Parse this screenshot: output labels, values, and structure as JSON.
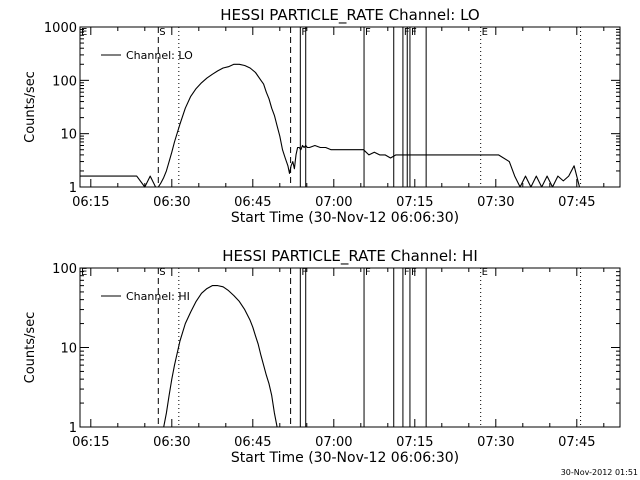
{
  "chart_data": [
    {
      "type": "line",
      "title": "HESSI PARTICLE_RATE Channel: LO",
      "xlabel": "Start Time (30-Nov-12 06:06:30)",
      "ylabel": "Counts/sec",
      "yscale": "log",
      "ylim": [
        1,
        1000
      ],
      "xlim_min": [
        6.5,
        106.5
      ],
      "xticks_min": [
        8.5,
        23.5,
        38.5,
        53.5,
        68.5,
        83.5,
        98.5
      ],
      "xtick_labels": [
        "06:15",
        "06:30",
        "06:45",
        "07:00",
        "07:15",
        "07:30",
        "07:45"
      ],
      "yticks": [
        1,
        10,
        100,
        1000
      ],
      "ytick_labels": [
        "1",
        "10",
        "100",
        "1000"
      ],
      "legend_label": "Channel: LO",
      "legend_position": "top-left",
      "markers": [
        {
          "label": "E",
          "x": 6.5,
          "style": "solid"
        },
        {
          "label": "S",
          "x": 21,
          "style": "dashed"
        },
        {
          "label": "",
          "x": 24.8,
          "style": "dotted"
        },
        {
          "label": "",
          "x": 45.5,
          "style": "dashed"
        },
        {
          "label": "F",
          "x": 47.3,
          "style": "solid"
        },
        {
          "label": "",
          "x": 48.3,
          "style": "solid"
        },
        {
          "label": "F",
          "x": 59.1,
          "style": "solid"
        },
        {
          "label": "",
          "x": 64.6,
          "style": "solid"
        },
        {
          "label": "F",
          "x": 66.3,
          "style": "solid"
        },
        {
          "label": "",
          "x": 67.1,
          "style": "solid"
        },
        {
          "label": "F",
          "x": 67.6,
          "style": "solid"
        },
        {
          "label": "",
          "x": 70.6,
          "style": "solid"
        },
        {
          "label": "E",
          "x": 80.7,
          "style": "dotted"
        },
        {
          "label": "",
          "x": 99.2,
          "style": "dotted"
        }
      ],
      "series": [
        {
          "x": [
            6.5,
            8.5,
            11,
            13,
            15,
            17,
            18.5,
            19.5,
            20.5,
            21,
            21.5,
            22,
            22.5,
            23,
            23.5,
            24,
            25,
            26,
            27,
            28,
            29,
            30,
            31,
            32,
            33,
            34,
            35,
            36,
            37,
            38,
            39,
            40,
            40.5,
            41,
            41.5,
            42,
            42.5,
            43,
            43.5,
            44,
            44.5,
            45,
            45.3,
            45.6,
            45.9,
            46.2,
            46.5,
            46.8,
            47.1,
            47.4,
            47.7,
            48,
            48.3,
            48.6,
            49,
            50,
            51,
            52,
            53,
            55,
            57,
            59,
            60,
            61,
            62,
            63,
            64,
            65,
            66,
            67,
            68,
            69,
            70,
            72,
            74,
            76,
            78,
            80,
            82,
            84,
            86,
            87,
            88,
            89,
            90,
            91,
            92,
            93,
            94,
            95,
            96,
            97,
            98,
            99
          ],
          "y": [
            1.6,
            1.6,
            1.6,
            1.6,
            1.6,
            1.6,
            1,
            1.6,
            1,
            1,
            1.2,
            1.5,
            2,
            3,
            4.5,
            7,
            15,
            30,
            50,
            70,
            90,
            110,
            130,
            150,
            170,
            180,
            200,
            200,
            190,
            170,
            140,
            100,
            85,
            60,
            45,
            30,
            22,
            14,
            9,
            5,
            3.5,
            2.5,
            1.8,
            2.5,
            3,
            2.2,
            4,
            5.5,
            5.5,
            5,
            6,
            5.5,
            6,
            5.5,
            5.5,
            6,
            5.5,
            5.5,
            5,
            5,
            5,
            5,
            4,
            4.5,
            4,
            4,
            3.5,
            4,
            4,
            4,
            4,
            4,
            4,
            4,
            4,
            4,
            4,
            4,
            4,
            4,
            3,
            1.6,
            1,
            1.6,
            1,
            1.6,
            1,
            1.6,
            1,
            1.6,
            1.3,
            1.6,
            2.5,
            1
          ]
        }
      ]
    },
    {
      "type": "line",
      "title": "HESSI PARTICLE_RATE Channel: HI",
      "xlabel": "Start Time (30-Nov-12 06:06:30)",
      "ylabel": "Counts/sec",
      "yscale": "log",
      "ylim": [
        1,
        100
      ],
      "xlim_min": [
        6.5,
        106.5
      ],
      "xticks_min": [
        8.5,
        23.5,
        38.5,
        53.5,
        68.5,
        83.5,
        98.5
      ],
      "xtick_labels": [
        "06:15",
        "06:30",
        "06:45",
        "07:00",
        "07:15",
        "07:30",
        "07:45"
      ],
      "yticks": [
        1,
        10,
        100
      ],
      "ytick_labels": [
        "1",
        "10",
        "100"
      ],
      "legend_label": "Channel: HI",
      "legend_position": "top-left",
      "markers": [
        {
          "label": "E",
          "x": 6.5,
          "style": "solid"
        },
        {
          "label": "S",
          "x": 21,
          "style": "dashed"
        },
        {
          "label": "",
          "x": 24.8,
          "style": "dotted"
        },
        {
          "label": "",
          "x": 45.5,
          "style": "dashed"
        },
        {
          "label": "F",
          "x": 47.3,
          "style": "solid"
        },
        {
          "label": "",
          "x": 48.3,
          "style": "solid"
        },
        {
          "label": "F",
          "x": 59.1,
          "style": "solid"
        },
        {
          "label": "",
          "x": 64.6,
          "style": "solid"
        },
        {
          "label": "F",
          "x": 66.3,
          "style": "solid"
        },
        {
          "label": "F",
          "x": 67.6,
          "style": "solid"
        },
        {
          "label": "",
          "x": 70.6,
          "style": "solid"
        },
        {
          "label": "E",
          "x": 80.7,
          "style": "dotted"
        },
        {
          "label": "",
          "x": 99.2,
          "style": "dotted"
        }
      ],
      "series": [
        {
          "x": [
            22,
            22.5,
            23,
            23.5,
            24,
            25,
            26,
            27,
            28,
            29,
            30,
            31,
            32,
            33,
            34,
            35,
            36,
            37,
            38,
            38.5,
            39,
            39.5,
            40,
            40.5,
            41,
            41.5,
            42,
            42.5,
            43
          ],
          "y": [
            1,
            1.5,
            2.5,
            4,
            6,
            12,
            20,
            28,
            38,
            48,
            55,
            60,
            60,
            58,
            52,
            45,
            38,
            30,
            22,
            18,
            14,
            11,
            8,
            6,
            4.5,
            3.5,
            2.5,
            1.5,
            1
          ]
        }
      ]
    }
  ],
  "footer_timestamp": "30-Nov-2012 01:51"
}
